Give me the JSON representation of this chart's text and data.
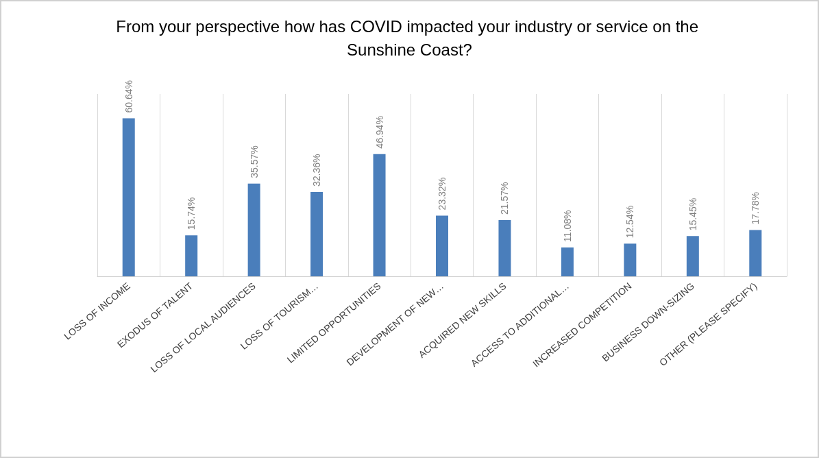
{
  "chart_data": {
    "type": "bar",
    "title": "From your perspective how has COVID impacted your industry or service on the Sunshine Coast?",
    "categories": [
      "LOSS OF INCOME",
      "EXODUS OF TALENT",
      "LOSS OF LOCAL AUDIENCES",
      "LOSS OF TOURISM…",
      "LIMITED OPPORTUNITIES",
      "DEVELOPMENT OF NEW…",
      "ACQUIRED NEW SKILLS",
      "ACCESS TO ADDITIONAL…",
      "INCREASED COMPETITION",
      "BUSINESS DOWN-SIZING",
      "OTHER (PLEASE SPECIFY)"
    ],
    "values": [
      60.64,
      15.74,
      35.57,
      32.36,
      46.94,
      23.32,
      21.57,
      11.08,
      12.54,
      15.45,
      17.78
    ],
    "value_labels": [
      "60.64%",
      "15.74%",
      "35.57%",
      "32.36%",
      "46.94%",
      "23.32%",
      "21.57%",
      "11.08%",
      "12.54%",
      "15.45%",
      "17.78%"
    ],
    "color": "#4a7ebb",
    "grid": "x"
  }
}
